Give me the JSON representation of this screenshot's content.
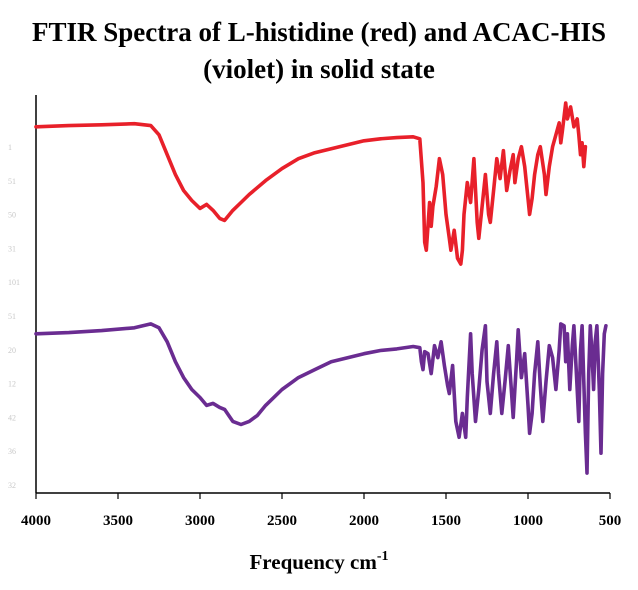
{
  "chart_data": {
    "type": "line",
    "title_lines": [
      "FTIR Spectra of L-histidine (red) and ACAC-HIS",
      "(violet) in solid state"
    ],
    "xlabel": "Frequency cm",
    "xlabel_sup": "-1",
    "ylabel": "",
    "xlim": [
      4000,
      500
    ],
    "x_ticks": [
      4000,
      3500,
      3000,
      2500,
      2000,
      1500,
      1000,
      500
    ],
    "x_tick_labels": [
      "4000",
      "3500",
      "3000",
      "2500",
      "2000",
      "1500",
      "1000",
      "500"
    ],
    "ylim": [
      0,
      100
    ],
    "y_faint_labels": [
      "1",
      "51",
      "50",
      "31",
      "101",
      "51",
      "20",
      "12",
      "42",
      "36",
      "32"
    ],
    "colors": {
      "red": "#e8202a",
      "violet": "#6a2c91"
    },
    "series": [
      {
        "name": "L-histidine",
        "color_name": "red",
        "points": [
          [
            4000,
            92
          ],
          [
            3800,
            92.3
          ],
          [
            3600,
            92.5
          ],
          [
            3400,
            92.8
          ],
          [
            3300,
            92.3
          ],
          [
            3250,
            90
          ],
          [
            3200,
            85
          ],
          [
            3150,
            80
          ],
          [
            3100,
            76
          ],
          [
            3050,
            73.5
          ],
          [
            3000,
            71.5
          ],
          [
            2960,
            72.5
          ],
          [
            2920,
            71
          ],
          [
            2880,
            69
          ],
          [
            2850,
            68.5
          ],
          [
            2800,
            71
          ],
          [
            2750,
            73
          ],
          [
            2700,
            75
          ],
          [
            2600,
            78.5
          ],
          [
            2500,
            81.5
          ],
          [
            2400,
            84
          ],
          [
            2300,
            85.5
          ],
          [
            2200,
            86.5
          ],
          [
            2100,
            87.5
          ],
          [
            2000,
            88.5
          ],
          [
            1900,
            89
          ],
          [
            1800,
            89.3
          ],
          [
            1700,
            89.5
          ],
          [
            1660,
            89
          ],
          [
            1640,
            78
          ],
          [
            1630,
            63
          ],
          [
            1620,
            61
          ],
          [
            1600,
            73
          ],
          [
            1590,
            67
          ],
          [
            1580,
            72
          ],
          [
            1560,
            77
          ],
          [
            1540,
            84
          ],
          [
            1520,
            80
          ],
          [
            1500,
            70
          ],
          [
            1480,
            64
          ],
          [
            1470,
            61
          ],
          [
            1450,
            66
          ],
          [
            1430,
            59
          ],
          [
            1410,
            57.5
          ],
          [
            1400,
            61
          ],
          [
            1390,
            70
          ],
          [
            1370,
            78
          ],
          [
            1350,
            73
          ],
          [
            1330,
            84
          ],
          [
            1310,
            68
          ],
          [
            1300,
            64
          ],
          [
            1280,
            72
          ],
          [
            1260,
            80
          ],
          [
            1240,
            70
          ],
          [
            1230,
            68
          ],
          [
            1210,
            76
          ],
          [
            1190,
            84
          ],
          [
            1170,
            79
          ],
          [
            1150,
            86
          ],
          [
            1130,
            76
          ],
          [
            1110,
            81
          ],
          [
            1090,
            85
          ],
          [
            1080,
            78
          ],
          [
            1060,
            84
          ],
          [
            1040,
            87
          ],
          [
            1020,
            82
          ],
          [
            1000,
            74
          ],
          [
            990,
            70
          ],
          [
            975,
            74
          ],
          [
            960,
            80
          ],
          [
            940,
            85
          ],
          [
            925,
            87
          ],
          [
            900,
            80
          ],
          [
            890,
            75
          ],
          [
            870,
            82
          ],
          [
            850,
            87
          ],
          [
            830,
            90
          ],
          [
            810,
            93
          ],
          [
            800,
            88
          ],
          [
            790,
            91
          ],
          [
            770,
            98
          ],
          [
            760,
            94
          ],
          [
            740,
            97
          ],
          [
            720,
            92
          ],
          [
            700,
            94
          ],
          [
            690,
            90
          ],
          [
            680,
            85
          ],
          [
            670,
            88
          ],
          [
            660,
            82
          ],
          [
            650,
            87
          ]
        ]
      },
      {
        "name": "ACAC-HIS",
        "color_name": "violet",
        "points": [
          [
            4000,
            40
          ],
          [
            3800,
            40.3
          ],
          [
            3600,
            40.8
          ],
          [
            3400,
            41.5
          ],
          [
            3300,
            42.5
          ],
          [
            3250,
            41.5
          ],
          [
            3200,
            38
          ],
          [
            3150,
            33
          ],
          [
            3100,
            29
          ],
          [
            3050,
            26
          ],
          [
            3000,
            24
          ],
          [
            2960,
            22
          ],
          [
            2920,
            22.5
          ],
          [
            2880,
            21.5
          ],
          [
            2850,
            21
          ],
          [
            2800,
            18
          ],
          [
            2750,
            17.2
          ],
          [
            2700,
            18
          ],
          [
            2650,
            19.5
          ],
          [
            2600,
            22
          ],
          [
            2500,
            26
          ],
          [
            2400,
            29
          ],
          [
            2300,
            31
          ],
          [
            2200,
            33
          ],
          [
            2100,
            34
          ],
          [
            2000,
            35
          ],
          [
            1900,
            35.8
          ],
          [
            1800,
            36.2
          ],
          [
            1700,
            36.8
          ],
          [
            1660,
            36.5
          ],
          [
            1650,
            33
          ],
          [
            1640,
            31
          ],
          [
            1630,
            35.5
          ],
          [
            1610,
            35
          ],
          [
            1590,
            30
          ],
          [
            1570,
            37
          ],
          [
            1550,
            34
          ],
          [
            1530,
            38
          ],
          [
            1510,
            32
          ],
          [
            1490,
            27
          ],
          [
            1480,
            25
          ],
          [
            1460,
            32
          ],
          [
            1440,
            18
          ],
          [
            1420,
            14
          ],
          [
            1400,
            20
          ],
          [
            1380,
            14
          ],
          [
            1370,
            24
          ],
          [
            1350,
            40
          ],
          [
            1340,
            30
          ],
          [
            1320,
            18
          ],
          [
            1300,
            26
          ],
          [
            1280,
            36
          ],
          [
            1260,
            42
          ],
          [
            1250,
            28
          ],
          [
            1230,
            20
          ],
          [
            1210,
            30
          ],
          [
            1190,
            38
          ],
          [
            1180,
            30
          ],
          [
            1160,
            20
          ],
          [
            1140,
            28
          ],
          [
            1120,
            37
          ],
          [
            1100,
            25
          ],
          [
            1090,
            19
          ],
          [
            1070,
            33
          ],
          [
            1060,
            41
          ],
          [
            1040,
            29
          ],
          [
            1020,
            35
          ],
          [
            1000,
            22
          ],
          [
            990,
            15
          ],
          [
            975,
            20
          ],
          [
            960,
            30
          ],
          [
            940,
            38
          ],
          [
            925,
            27
          ],
          [
            910,
            18
          ],
          [
            890,
            28
          ],
          [
            870,
            37
          ],
          [
            850,
            34
          ],
          [
            830,
            26
          ],
          [
            810,
            36
          ],
          [
            800,
            42.5
          ],
          [
            780,
            42
          ],
          [
            770,
            33
          ],
          [
            760,
            40
          ],
          [
            745,
            26
          ],
          [
            730,
            37
          ],
          [
            720,
            42
          ],
          [
            705,
            30
          ],
          [
            690,
            18
          ],
          [
            680,
            36
          ],
          [
            670,
            42
          ],
          [
            660,
            28
          ],
          [
            650,
            15
          ],
          [
            640,
            5
          ],
          [
            630,
            30
          ],
          [
            620,
            42
          ],
          [
            610,
            35
          ],
          [
            600,
            26
          ],
          [
            590,
            38
          ],
          [
            580,
            42
          ],
          [
            565,
            26
          ],
          [
            555,
            10
          ],
          [
            545,
            30
          ],
          [
            535,
            40
          ],
          [
            525,
            42
          ]
        ]
      }
    ]
  }
}
